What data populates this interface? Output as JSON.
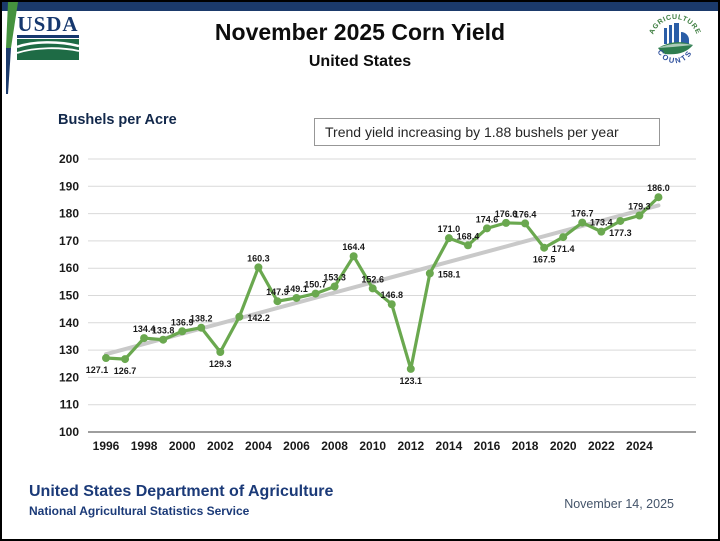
{
  "header": {
    "usda_logo_text": "USDA",
    "title": "November 2025 Corn Yield",
    "subtitle": "United States",
    "seal_top_text": "AGRICULTURE",
    "seal_bottom_text": "COUNTS"
  },
  "annotation": "Trend yield increasing by 1.88 bushels per year",
  "chart_data": {
    "type": "line",
    "title": "November 2025 Corn Yield",
    "subtitle": "United States",
    "xlabel": "",
    "ylabel": "Bushels per Acre",
    "ylim": [
      100,
      200
    ],
    "ytick_step": 10,
    "xticks": [
      1996,
      1998,
      2000,
      2002,
      2004,
      2006,
      2008,
      2010,
      2012,
      2014,
      2016,
      2018,
      2020,
      2022,
      2024
    ],
    "grid": true,
    "legend": "none",
    "x": [
      1996,
      1997,
      1998,
      1999,
      2000,
      2001,
      2002,
      2003,
      2004,
      2005,
      2006,
      2007,
      2008,
      2009,
      2010,
      2011,
      2012,
      2013,
      2014,
      2015,
      2016,
      2017,
      2018,
      2019,
      2020,
      2021,
      2022,
      2023,
      2024,
      2025
    ],
    "series": [
      {
        "name": "U.S. corn yield (bushels per acre)",
        "color": "#6aa84f",
        "values": [
          127.1,
          126.7,
          134.4,
          133.8,
          136.9,
          138.2,
          129.3,
          142.2,
          160.3,
          147.9,
          149.1,
          150.7,
          153.3,
          164.4,
          152.6,
          146.8,
          123.1,
          158.1,
          171.0,
          168.4,
          174.6,
          176.6,
          176.4,
          167.5,
          171.4,
          176.7,
          173.4,
          177.3,
          179.3,
          186.0
        ],
        "label_pos": [
          "bl",
          "b",
          "a",
          "a",
          "a",
          "a",
          "b",
          "r",
          "a",
          "a",
          "a",
          "a",
          "a",
          "a",
          "a",
          "a",
          "b",
          "r",
          "a",
          "a",
          "a",
          "a",
          "a",
          "b",
          "b",
          "a",
          "a",
          "b",
          "a",
          "a"
        ]
      },
      {
        "name": "Trend (+1.88 bushels per year)",
        "color": "#c9c9c9",
        "x": [
          1996,
          2025
        ],
        "values": [
          128.5,
          183.0
        ]
      }
    ],
    "annotation": "Trend yield increasing by 1.88 bushels per year"
  },
  "footer": {
    "org": "United States Department of Agriculture",
    "agency": "National Agricultural Statistics Service",
    "date": "November 14, 2025"
  }
}
